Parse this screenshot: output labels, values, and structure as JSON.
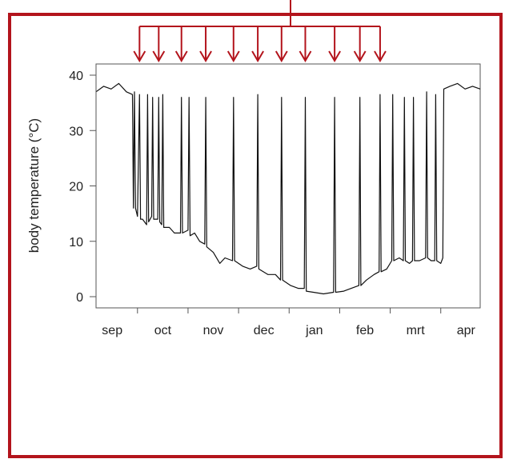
{
  "chart_data": {
    "type": "line",
    "title": "",
    "xlabel": "",
    "ylabel": "body temperature (°C)",
    "ylim": [
      0,
      40
    ],
    "yticks": [
      0,
      10,
      20,
      30,
      40
    ],
    "x_categories": [
      "sep",
      "oct",
      "nov",
      "dec",
      "jan",
      "feb",
      "mrt",
      "apr"
    ],
    "x_unit": "months (start of September = 0)",
    "xlim": [
      0,
      7.6
    ],
    "series": [
      {
        "values": [
          [
            0.0,
            37.0
          ],
          [
            0.15,
            38.0
          ],
          [
            0.3,
            37.5
          ],
          [
            0.45,
            38.5
          ],
          [
            0.6,
            37.0
          ],
          [
            0.72,
            36.5
          ],
          [
            0.74,
            16.0
          ],
          [
            0.76,
            37.0
          ],
          [
            0.78,
            16.0
          ],
          [
            0.82,
            14.5
          ],
          [
            0.86,
            36.5
          ],
          [
            0.88,
            14.0
          ],
          [
            0.92,
            14.0
          ],
          [
            1.0,
            13.0
          ],
          [
            1.02,
            36.5
          ],
          [
            1.04,
            13.5
          ],
          [
            1.1,
            14.5
          ],
          [
            1.12,
            36.0
          ],
          [
            1.14,
            14.0
          ],
          [
            1.22,
            14.0
          ],
          [
            1.24,
            36.0
          ],
          [
            1.26,
            13.5
          ],
          [
            1.3,
            13.0
          ],
          [
            1.32,
            36.5
          ],
          [
            1.34,
            12.5
          ],
          [
            1.45,
            12.5
          ],
          [
            1.55,
            11.5
          ],
          [
            1.67,
            11.5
          ],
          [
            1.69,
            36.0
          ],
          [
            1.71,
            11.5
          ],
          [
            1.82,
            12.0
          ],
          [
            1.84,
            36.0
          ],
          [
            1.86,
            11.0
          ],
          [
            1.95,
            11.5
          ],
          [
            2.05,
            10.0
          ],
          [
            2.15,
            9.5
          ],
          [
            2.17,
            36.0
          ],
          [
            2.19,
            9.0
          ],
          [
            2.32,
            8.0
          ],
          [
            2.45,
            6.0
          ],
          [
            2.55,
            7.0
          ],
          [
            2.7,
            6.5
          ],
          [
            2.72,
            36.0
          ],
          [
            2.74,
            6.5
          ],
          [
            2.9,
            5.5
          ],
          [
            3.05,
            5.0
          ],
          [
            3.18,
            5.5
          ],
          [
            3.2,
            36.5
          ],
          [
            3.22,
            5.0
          ],
          [
            3.4,
            4.0
          ],
          [
            3.55,
            4.0
          ],
          [
            3.65,
            3.0
          ],
          [
            3.67,
            36.0
          ],
          [
            3.69,
            3.0
          ],
          [
            3.85,
            2.0
          ],
          [
            4.0,
            1.5
          ],
          [
            4.12,
            1.5
          ],
          [
            4.14,
            36.0
          ],
          [
            4.16,
            1.0
          ],
          [
            4.3,
            0.8
          ],
          [
            4.5,
            0.5
          ],
          [
            4.7,
            0.8
          ],
          [
            4.72,
            36.0
          ],
          [
            4.74,
            0.8
          ],
          [
            4.9,
            1.0
          ],
          [
            5.05,
            1.5
          ],
          [
            5.2,
            2.0
          ],
          [
            5.22,
            36.0
          ],
          [
            5.24,
            2.0
          ],
          [
            5.35,
            3.0
          ],
          [
            5.5,
            4.0
          ],
          [
            5.6,
            4.5
          ],
          [
            5.62,
            36.5
          ],
          [
            5.64,
            4.5
          ],
          [
            5.75,
            5.0
          ],
          [
            5.85,
            6.5
          ],
          [
            5.87,
            36.5
          ],
          [
            5.89,
            6.5
          ],
          [
            6.0,
            7.0
          ],
          [
            6.08,
            6.5
          ],
          [
            6.1,
            36.0
          ],
          [
            6.12,
            6.5
          ],
          [
            6.2,
            6.0
          ],
          [
            6.26,
            6.5
          ],
          [
            6.28,
            36.0
          ],
          [
            6.3,
            6.5
          ],
          [
            6.4,
            6.5
          ],
          [
            6.52,
            7.0
          ],
          [
            6.54,
            37.0
          ],
          [
            6.56,
            7.0
          ],
          [
            6.63,
            6.5
          ],
          [
            6.7,
            6.5
          ],
          [
            6.72,
            36.5
          ],
          [
            6.74,
            6.5
          ],
          [
            6.82,
            6.0
          ],
          [
            6.86,
            7.0
          ],
          [
            6.88,
            37.5
          ],
          [
            7.0,
            38.0
          ],
          [
            7.15,
            38.5
          ],
          [
            7.3,
            37.5
          ],
          [
            7.45,
            38.0
          ],
          [
            7.6,
            37.5
          ]
        ]
      }
    ],
    "arrows": {
      "count": 11,
      "at_months": [
        0.86,
        1.24,
        1.69,
        2.17,
        2.72,
        3.2,
        3.67,
        4.14,
        4.72,
        5.22,
        5.62
      ]
    },
    "grid": false,
    "legend": "none"
  },
  "colors": {
    "frame": "#b3141c",
    "arrows": "#b3141c",
    "line": "#111111",
    "axis": "#555555"
  }
}
